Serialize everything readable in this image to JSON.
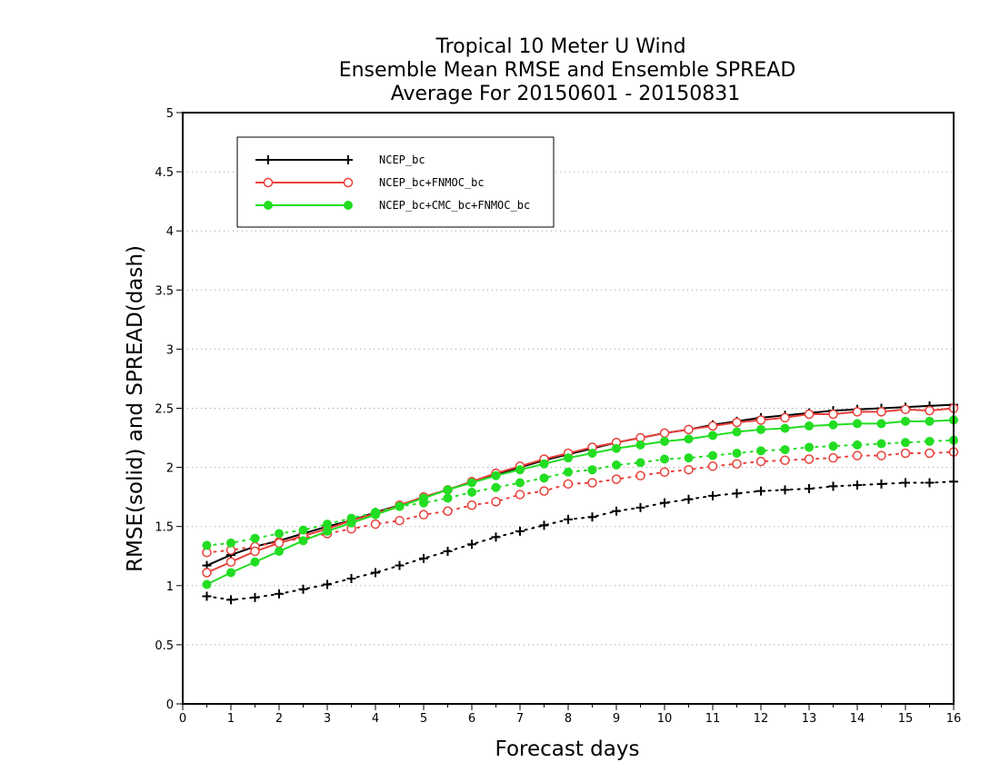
{
  "chart_data": {
    "type": "line",
    "title_lines": [
      "Tropical 10 Meter U Wind",
      "Ensemble Mean RMSE and Ensemble SPREAD",
      "Average For 20150601 - 20150831"
    ],
    "xlabel": "Forecast days",
    "ylabel": "RMSE(solid) and SPREAD(dash)",
    "xlim": [
      0,
      16
    ],
    "ylim": [
      0,
      5
    ],
    "xticks": [
      "0",
      "1",
      "2",
      "3",
      "4",
      "5",
      "6",
      "7",
      "8",
      "9",
      "10",
      "11",
      "12",
      "13",
      "14",
      "15",
      "16"
    ],
    "yticks": [
      "0",
      "0.5",
      "1",
      "1.5",
      "2",
      "2.5",
      "3",
      "3.5",
      "4",
      "4.5",
      "5"
    ],
    "grid": "horizontal dotted",
    "legend_position": "top-left",
    "x": [
      0.5,
      1,
      1.5,
      2,
      2.5,
      3,
      3.5,
      4,
      4.5,
      5,
      5.5,
      6,
      6.5,
      7,
      7.5,
      8,
      8.5,
      9,
      9.5,
      10,
      10.5,
      11,
      11.5,
      12,
      12.5,
      13,
      13.5,
      14,
      14.5,
      15,
      15.5,
      16
    ],
    "series": [
      {
        "name": "NCEP_bc",
        "color": "#000000",
        "marker": "plus",
        "rmse": [
          1.17,
          1.26,
          1.33,
          1.38,
          1.44,
          1.5,
          1.55,
          1.62,
          1.68,
          1.75,
          1.81,
          1.88,
          1.94,
          2.0,
          2.06,
          2.11,
          2.16,
          2.21,
          2.25,
          2.29,
          2.32,
          2.36,
          2.39,
          2.42,
          2.44,
          2.46,
          2.48,
          2.49,
          2.5,
          2.51,
          2.52,
          2.53
        ],
        "spread": [
          0.91,
          0.88,
          0.9,
          0.93,
          0.97,
          1.01,
          1.06,
          1.11,
          1.17,
          1.23,
          1.29,
          1.35,
          1.41,
          1.46,
          1.51,
          1.56,
          1.58,
          1.63,
          1.66,
          1.7,
          1.73,
          1.76,
          1.78,
          1.8,
          1.81,
          1.82,
          1.84,
          1.85,
          1.86,
          1.87,
          1.87,
          1.88
        ]
      },
      {
        "name": "NCEP_bc+FNMOC_bc",
        "color": "#e8403a",
        "marker": "open-circle",
        "rmse": [
          1.11,
          1.2,
          1.29,
          1.36,
          1.42,
          1.48,
          1.55,
          1.61,
          1.68,
          1.75,
          1.81,
          1.88,
          1.95,
          2.01,
          2.07,
          2.12,
          2.17,
          2.21,
          2.25,
          2.29,
          2.32,
          2.35,
          2.38,
          2.4,
          2.42,
          2.45,
          2.45,
          2.47,
          2.47,
          2.49,
          2.48,
          2.5
        ],
        "spread": [
          1.28,
          1.3,
          1.33,
          1.37,
          1.4,
          1.44,
          1.48,
          1.52,
          1.55,
          1.6,
          1.63,
          1.68,
          1.71,
          1.77,
          1.8,
          1.86,
          1.87,
          1.9,
          1.93,
          1.96,
          1.98,
          2.01,
          2.03,
          2.05,
          2.06,
          2.07,
          2.08,
          2.1,
          2.1,
          2.12,
          2.12,
          2.13
        ]
      },
      {
        "name": "NCEP_bc+CMC_bc+FNMOC_bc",
        "color": "#22dd22",
        "marker": "filled-circle",
        "rmse": [
          1.01,
          1.11,
          1.2,
          1.29,
          1.38,
          1.46,
          1.53,
          1.6,
          1.67,
          1.74,
          1.81,
          1.87,
          1.93,
          1.98,
          2.03,
          2.08,
          2.12,
          2.16,
          2.19,
          2.22,
          2.24,
          2.27,
          2.3,
          2.32,
          2.33,
          2.35,
          2.36,
          2.37,
          2.37,
          2.39,
          2.39,
          2.4
        ],
        "spread": [
          1.34,
          1.36,
          1.4,
          1.44,
          1.47,
          1.52,
          1.57,
          1.62,
          1.67,
          1.7,
          1.74,
          1.79,
          1.83,
          1.87,
          1.91,
          1.96,
          1.98,
          2.02,
          2.04,
          2.07,
          2.08,
          2.1,
          2.12,
          2.14,
          2.15,
          2.17,
          2.18,
          2.19,
          2.2,
          2.21,
          2.22,
          2.23
        ]
      }
    ]
  }
}
